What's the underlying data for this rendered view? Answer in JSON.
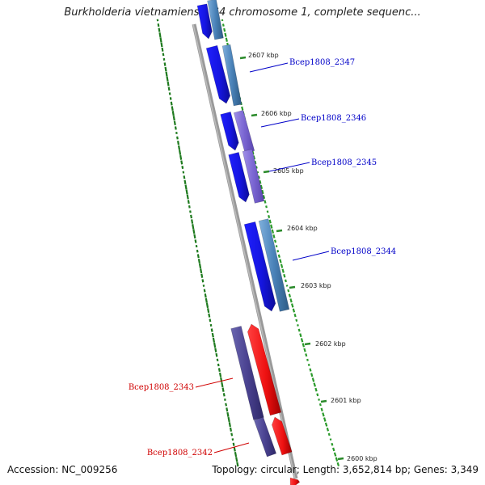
{
  "title": "Burkholderia vietnamiensis G4 chromosome 1, complete sequenc...",
  "footer": {
    "accession": "Accession: NC_009256",
    "summary": "Topology: circular; Length: 3,652,814 bp; Genes: 3,349"
  },
  "colors": {
    "forward_cds": "#1a1aee",
    "reverse_cds": "#ee1111",
    "label_forward": "#0000c8",
    "label_reverse": "#d00000",
    "backbone": "#888888",
    "gc_ticks": "#2a8a2a"
  },
  "ticks": [
    {
      "label": "2607 kbp"
    },
    {
      "label": "2606 kbp"
    },
    {
      "label": "2605 kbp"
    },
    {
      "label": "2604 kbp"
    },
    {
      "label": "2603 kbp"
    },
    {
      "label": "2602 kbp"
    },
    {
      "label": "2601 kbp"
    },
    {
      "label": "2600 kbp"
    }
  ],
  "genes": [
    {
      "name": "Bcep1808_2347",
      "strand": "forward"
    },
    {
      "name": "Bcep1808_2346",
      "strand": "forward"
    },
    {
      "name": "Bcep1808_2345",
      "strand": "forward"
    },
    {
      "name": "Bcep1808_2344",
      "strand": "forward"
    },
    {
      "name": "Bcep1808_2343",
      "strand": "reverse"
    },
    {
      "name": "Bcep1808_2342",
      "strand": "reverse"
    }
  ]
}
